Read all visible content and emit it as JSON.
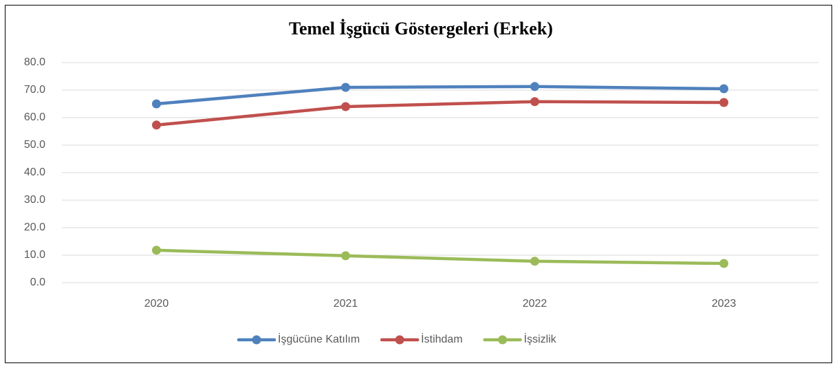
{
  "chart_data": {
    "type": "line",
    "title": "Temel İşgücü Göstergeleri (Erkek)",
    "categories": [
      "2020",
      "2021",
      "2022",
      "2023"
    ],
    "series": [
      {
        "name": "İşgücüne Katılım",
        "color": "#4f81bd",
        "values": [
          65.0,
          71.0,
          71.3,
          70.5
        ]
      },
      {
        "name": "İstihdam",
        "color": "#c0504d",
        "values": [
          57.3,
          64.0,
          65.8,
          65.5
        ]
      },
      {
        "name": "İşsizlik",
        "color": "#9bbb59",
        "values": [
          11.8,
          9.8,
          7.8,
          7.0
        ]
      }
    ],
    "ylim": [
      0,
      80
    ],
    "yticks": [
      {
        "value": 0,
        "label": "0.0"
      },
      {
        "value": 10,
        "label": "10.0"
      },
      {
        "value": 20,
        "label": "20.0"
      },
      {
        "value": 30,
        "label": "30.0"
      },
      {
        "value": 40,
        "label": "40.0"
      },
      {
        "value": 50,
        "label": "50.0"
      },
      {
        "value": 60,
        "label": "60.0"
      },
      {
        "value": 70,
        "label": "70.0"
      },
      {
        "value": 80,
        "label": "80.0"
      }
    ],
    "grid": true,
    "legend": "bottom"
  }
}
